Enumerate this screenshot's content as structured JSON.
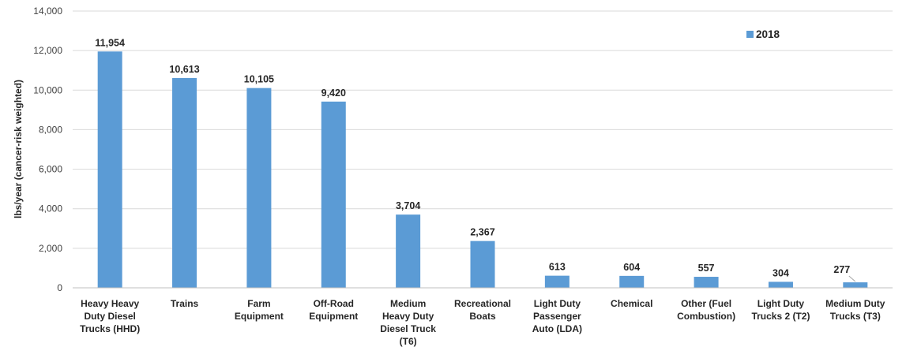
{
  "chart_data": {
    "type": "bar",
    "title": "",
    "xlabel": "",
    "ylabel": "lbs/year (cancer-risk weighted)",
    "ylim": [
      0,
      14000
    ],
    "yticks": [
      0,
      2000,
      4000,
      6000,
      8000,
      10000,
      12000,
      14000
    ],
    "ytick_labels": [
      "0",
      "2,000",
      "4,000",
      "6,000",
      "8,000",
      "10,000",
      "12,000",
      "14,000"
    ],
    "grid": true,
    "legend_position": "top-right",
    "bar_color": "#5b9bd5",
    "categories": [
      "Heavy Heavy Duty Diesel Trucks (HHD)",
      "Trains",
      "Farm Equipment",
      "Off-Road Equipment",
      "Medium Heavy Duty Diesel Truck (T6)",
      "Recreational Boats",
      "Light Duty Passenger Auto (LDA)",
      "Chemical",
      "Other (Fuel Combustion)",
      "Light Duty Trucks 2 (T2)",
      "Medium Duty Trucks (T3)"
    ],
    "category_label_lines": [
      [
        "Heavy Heavy",
        "Duty Diesel",
        "Trucks (HHD)"
      ],
      [
        "Trains"
      ],
      [
        "Farm",
        "Equipment"
      ],
      [
        "Off-Road",
        "Equipment"
      ],
      [
        "Medium",
        "Heavy Duty",
        "Diesel Truck",
        "(T6)"
      ],
      [
        "Recreational",
        "Boats"
      ],
      [
        "Light Duty",
        "Passenger",
        "Auto (LDA)"
      ],
      [
        "Chemical"
      ],
      [
        "Other (Fuel",
        "Combustion)"
      ],
      [
        "Light Duty",
        "Trucks 2 (T2)"
      ],
      [
        "Medium Duty",
        "Trucks (T3)"
      ]
    ],
    "series": [
      {
        "name": "2018",
        "values": [
          11954,
          10613,
          10105,
          9420,
          3704,
          2367,
          613,
          604,
          557,
          304,
          277
        ],
        "data_labels": [
          "11,954",
          "10,613",
          "10,105",
          "9,420",
          "3,704",
          "2,367",
          "613",
          "604",
          "557",
          "304",
          "277"
        ]
      }
    ]
  }
}
